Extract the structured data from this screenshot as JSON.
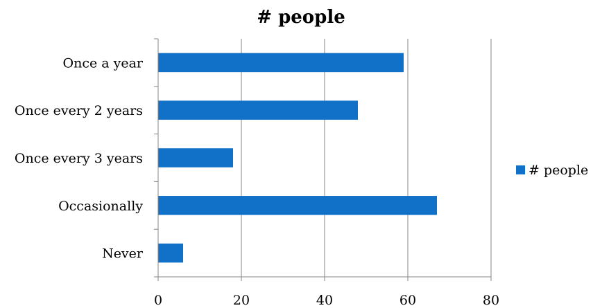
{
  "chart_data": {
    "type": "bar",
    "orientation": "horizontal",
    "title": "# people",
    "categories": [
      "Once a year",
      "Once every 2 years",
      "Once every 3 years",
      "Occasionally",
      "Never"
    ],
    "series": [
      {
        "name": "# people",
        "values": [
          59,
          48,
          18,
          67,
          6
        ],
        "color": "#1170c7"
      }
    ],
    "xlim": [
      0,
      80
    ],
    "xticks": [
      "0",
      "20",
      "40",
      "60",
      "80"
    ],
    "grid": true,
    "legend_position": "right"
  }
}
